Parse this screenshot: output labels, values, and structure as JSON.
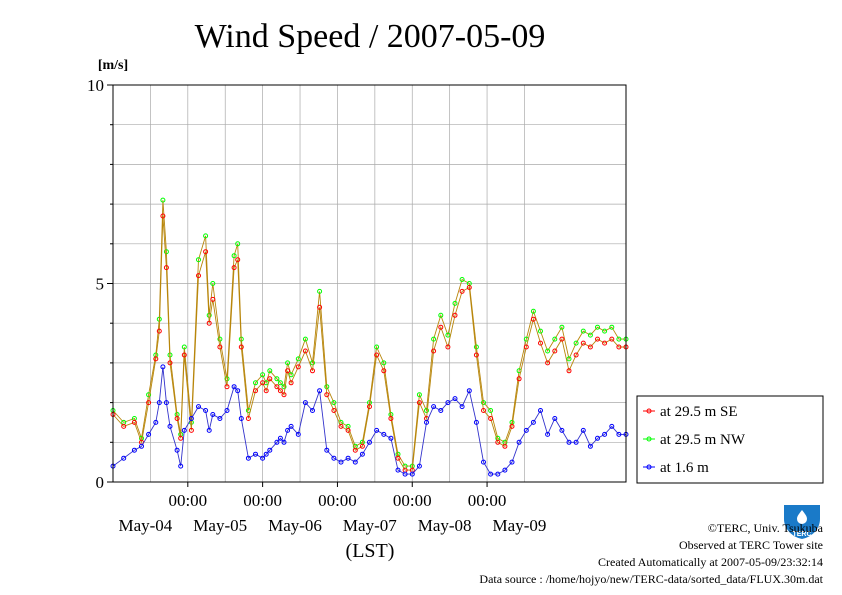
{
  "chart_data": {
    "type": "line",
    "title": "Wind Speed / 2007-05-09",
    "ylabel": "[m/s]",
    "xlabel": "(LST)",
    "ylim": [
      0,
      10
    ],
    "yticks": [
      "0",
      "5",
      "10"
    ],
    "x_time_labels": [
      "00:00",
      "00:00",
      "00:00",
      "00:00",
      "00:00"
    ],
    "x_day_labels": [
      "May-04",
      "May-05",
      "May-06",
      "May-07",
      "May-08",
      "May-09"
    ],
    "grid": true,
    "legend_position": "right",
    "x_unit": "hour of 6-day window",
    "xlim": [
      0,
      144
    ],
    "series": [
      {
        "name": "at 29.5 m SE",
        "color": "#ff0000",
        "x": [
          0,
          3,
          6,
          8,
          10,
          12,
          13,
          14,
          15,
          16,
          18,
          19,
          20,
          22,
          24,
          26,
          27,
          28,
          30,
          32,
          34,
          35,
          36,
          38,
          40,
          42,
          43,
          44,
          46,
          47,
          48,
          49,
          50,
          52,
          54,
          56,
          58,
          60,
          62,
          64,
          66,
          68,
          70,
          72,
          74,
          76,
          78,
          80,
          82,
          84,
          86,
          88,
          90,
          92,
          94,
          96,
          98,
          100,
          102,
          104,
          106,
          108,
          110,
          112,
          114,
          116,
          118,
          120,
          122,
          124,
          126,
          128,
          130,
          132,
          134,
          136,
          138,
          140,
          142,
          144
        ],
        "values": [
          1.7,
          1.4,
          1.5,
          1.0,
          2.0,
          3.1,
          3.8,
          6.7,
          5.4,
          3.0,
          1.6,
          1.1,
          3.2,
          1.3,
          5.2,
          5.8,
          4.0,
          4.6,
          3.4,
          2.4,
          5.4,
          5.6,
          3.4,
          1.6,
          2.3,
          2.5,
          2.3,
          2.6,
          2.4,
          2.3,
          2.2,
          2.8,
          2.5,
          2.9,
          3.3,
          2.8,
          4.4,
          2.2,
          1.8,
          1.4,
          1.3,
          0.8,
          0.9,
          1.9,
          3.2,
          2.8,
          1.6,
          0.6,
          0.3,
          0.3,
          2.0,
          1.6,
          3.3,
          3.9,
          3.4,
          4.2,
          4.8,
          4.9,
          3.2,
          1.8,
          1.6,
          1.0,
          0.9,
          1.4,
          2.6,
          3.4,
          4.1,
          3.5,
          3.0,
          3.3,
          3.6,
          2.8,
          3.2,
          3.5,
          3.4,
          3.6,
          3.5,
          3.6,
          3.4,
          3.4
        ]
      },
      {
        "name": "at 29.5 m NW",
        "color": "#00ff00",
        "x": [
          0,
          3,
          6,
          8,
          10,
          12,
          13,
          14,
          15,
          16,
          18,
          19,
          20,
          22,
          24,
          26,
          27,
          28,
          30,
          32,
          34,
          35,
          36,
          38,
          40,
          42,
          43,
          44,
          46,
          47,
          48,
          49,
          50,
          52,
          54,
          56,
          58,
          60,
          62,
          64,
          66,
          68,
          70,
          72,
          74,
          76,
          78,
          80,
          82,
          84,
          86,
          88,
          90,
          92,
          94,
          96,
          98,
          100,
          102,
          104,
          106,
          108,
          110,
          112,
          114,
          116,
          118,
          120,
          122,
          124,
          126,
          128,
          130,
          132,
          134,
          136,
          138,
          140,
          142,
          144
        ],
        "values": [
          1.8,
          1.5,
          1.6,
          1.1,
          2.2,
          3.2,
          4.1,
          7.1,
          5.8,
          3.2,
          1.7,
          1.2,
          3.4,
          1.5,
          5.6,
          6.2,
          4.2,
          5.0,
          3.6,
          2.6,
          5.7,
          6.0,
          3.6,
          1.8,
          2.5,
          2.7,
          2.5,
          2.8,
          2.6,
          2.5,
          2.4,
          3.0,
          2.7,
          3.1,
          3.6,
          3.0,
          4.8,
          2.4,
          2.0,
          1.5,
          1.4,
          0.9,
          1.0,
          2.0,
          3.4,
          3.0,
          1.7,
          0.7,
          0.4,
          0.4,
          2.2,
          1.8,
          3.6,
          4.2,
          3.7,
          4.5,
          5.1,
          5.0,
          3.4,
          2.0,
          1.8,
          1.1,
          1.0,
          1.5,
          2.8,
          3.6,
          4.3,
          3.8,
          3.3,
          3.6,
          3.9,
          3.1,
          3.5,
          3.8,
          3.7,
          3.9,
          3.8,
          3.9,
          3.6,
          3.6
        ]
      },
      {
        "name": "at 1.6 m",
        "color": "#0000ff",
        "x": [
          0,
          3,
          6,
          8,
          10,
          12,
          13,
          14,
          15,
          16,
          18,
          19,
          20,
          22,
          24,
          26,
          27,
          28,
          30,
          32,
          34,
          35,
          36,
          38,
          40,
          42,
          43,
          44,
          46,
          47,
          48,
          49,
          50,
          52,
          54,
          56,
          58,
          60,
          62,
          64,
          66,
          68,
          70,
          72,
          74,
          76,
          78,
          80,
          82,
          84,
          86,
          88,
          90,
          92,
          94,
          96,
          98,
          100,
          102,
          104,
          106,
          108,
          110,
          112,
          114,
          116,
          118,
          120,
          122,
          124,
          126,
          128,
          130,
          132,
          134,
          136,
          138,
          140,
          142,
          144
        ],
        "values": [
          0.4,
          0.6,
          0.8,
          0.9,
          1.2,
          1.5,
          2.0,
          2.9,
          2.0,
          1.4,
          0.8,
          0.4,
          1.3,
          1.6,
          1.9,
          1.8,
          1.3,
          1.7,
          1.6,
          1.8,
          2.4,
          2.3,
          1.6,
          0.6,
          0.7,
          0.6,
          0.7,
          0.8,
          1.0,
          1.1,
          1.0,
          1.3,
          1.4,
          1.2,
          2.0,
          1.8,
          2.3,
          0.8,
          0.6,
          0.5,
          0.6,
          0.5,
          0.7,
          1.0,
          1.3,
          1.2,
          1.1,
          0.3,
          0.2,
          0.2,
          0.4,
          1.5,
          1.9,
          1.8,
          2.0,
          2.1,
          1.9,
          2.3,
          1.5,
          0.5,
          0.2,
          0.2,
          0.3,
          0.5,
          1.0,
          1.3,
          1.5,
          1.8,
          1.2,
          1.6,
          1.3,
          1.0,
          1.0,
          1.3,
          0.9,
          1.1,
          1.2,
          1.4,
          1.2,
          1.2
        ]
      }
    ]
  },
  "footer": {
    "copyright": "©TERC, Univ. Tsukuba",
    "observed": "Observed at TERC Tower site",
    "created": "Created Automatically at 2007-05-09/23:32:14",
    "source": "Data source : /home/hojyo/new/TERC-data/sorted_data/FLUX.30m.dat"
  },
  "logo": {
    "text": "TERC"
  }
}
